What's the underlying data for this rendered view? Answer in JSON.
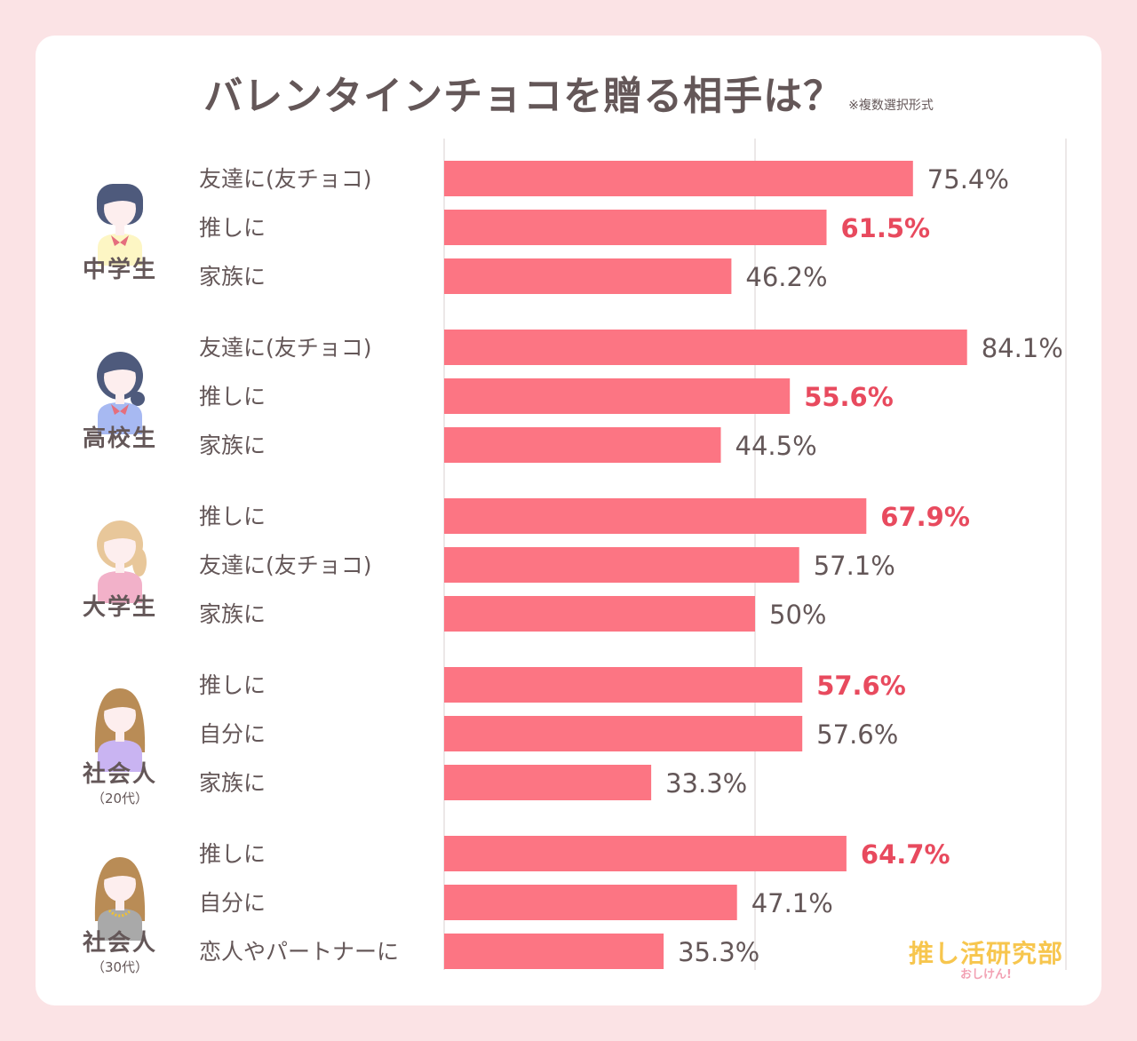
{
  "title": "バレンタインチョコを贈る相手は？",
  "title_note": "※複数選択形式",
  "logo": {
    "name": "推し活研究部",
    "sub": "おしけん!"
  },
  "colors": {
    "bar": "#fc7583",
    "highlight_text": "#e84a5e",
    "normal_text": "#645758",
    "grid": "#e6e0e0"
  },
  "chart_data": {
    "type": "bar",
    "orientation": "horizontal",
    "title": "バレンタインチョコを贈る相手は？",
    "xlim": [
      0,
      100
    ],
    "grid": true,
    "groups": [
      {
        "label": "中学生",
        "sublabel": "",
        "avatar": "middle-school-girl-icon",
        "bars": [
          {
            "label": "友達に(友チョコ)",
            "value": 75.4,
            "value_label": "75.4%",
            "highlight": false
          },
          {
            "label": "推しに",
            "value": 61.5,
            "value_label": "61.5%",
            "highlight": true
          },
          {
            "label": "家族に",
            "value": 46.2,
            "value_label": "46.2%",
            "highlight": false
          }
        ]
      },
      {
        "label": "高校生",
        "sublabel": "",
        "avatar": "high-school-girl-icon",
        "bars": [
          {
            "label": "友達に(友チョコ)",
            "value": 84.1,
            "value_label": "84.1%",
            "highlight": false
          },
          {
            "label": "推しに",
            "value": 55.6,
            "value_label": "55.6%",
            "highlight": true
          },
          {
            "label": "家族に",
            "value": 44.5,
            "value_label": "44.5%",
            "highlight": false
          }
        ]
      },
      {
        "label": "大学生",
        "sublabel": "",
        "avatar": "college-student-icon",
        "bars": [
          {
            "label": "推しに",
            "value": 67.9,
            "value_label": "67.9%",
            "highlight": true
          },
          {
            "label": "友達に(友チョコ)",
            "value": 57.1,
            "value_label": "57.1%",
            "highlight": false
          },
          {
            "label": "家族に",
            "value": 50,
            "value_label": "50%",
            "highlight": false
          }
        ]
      },
      {
        "label": "社会人",
        "sublabel": "（20代）",
        "avatar": "worker-20s-icon",
        "bars": [
          {
            "label": "推しに",
            "value": 57.6,
            "value_label": "57.6%",
            "highlight": true
          },
          {
            "label": "自分に",
            "value": 57.6,
            "value_label": "57.6%",
            "highlight": false
          },
          {
            "label": "家族に",
            "value": 33.3,
            "value_label": "33.3%",
            "highlight": false
          }
        ]
      },
      {
        "label": "社会人",
        "sublabel": "（30代）",
        "avatar": "worker-30s-icon",
        "bars": [
          {
            "label": "推しに",
            "value": 64.7,
            "value_label": "64.7%",
            "highlight": true
          },
          {
            "label": "自分に",
            "value": 47.1,
            "value_label": "47.1%",
            "highlight": false
          },
          {
            "label": "恋人やパートナーに",
            "value": 35.3,
            "value_label": "35.3%",
            "highlight": false
          }
        ]
      }
    ]
  }
}
